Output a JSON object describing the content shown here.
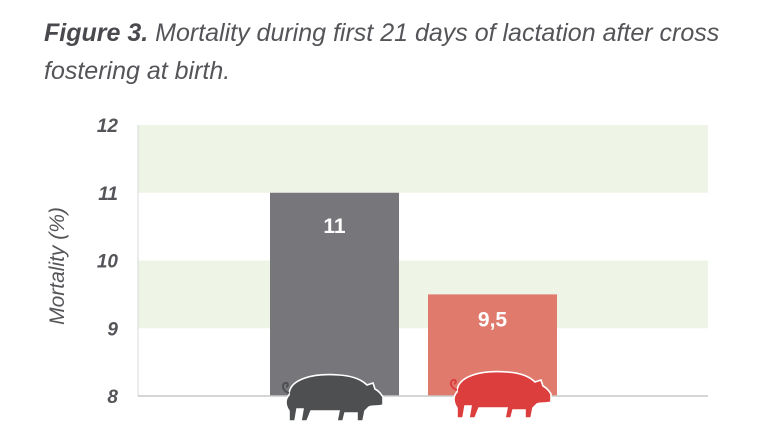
{
  "figure": {
    "label": "Figure 3.",
    "caption": "Mortality during first 21 days of lactation after cross fostering at birth."
  },
  "chart_data": {
    "type": "bar",
    "categories": [
      "",
      ""
    ],
    "values": [
      11,
      9.5
    ],
    "value_labels": [
      "11",
      "9,5"
    ],
    "ylabel": "Mortality (%)",
    "ylim": [
      8,
      12
    ],
    "yticks": [
      "8",
      "9",
      "10",
      "11",
      "12"
    ],
    "grid": "alternating horizontal bands",
    "bar_colors": [
      "#77777b",
      "#e07a6d"
    ],
    "band_color": "#eef4e6",
    "icons": [
      "pig-icon",
      "pig-icon"
    ],
    "icon_colors": [
      "#4d4f51",
      "#dc3e3e"
    ]
  }
}
